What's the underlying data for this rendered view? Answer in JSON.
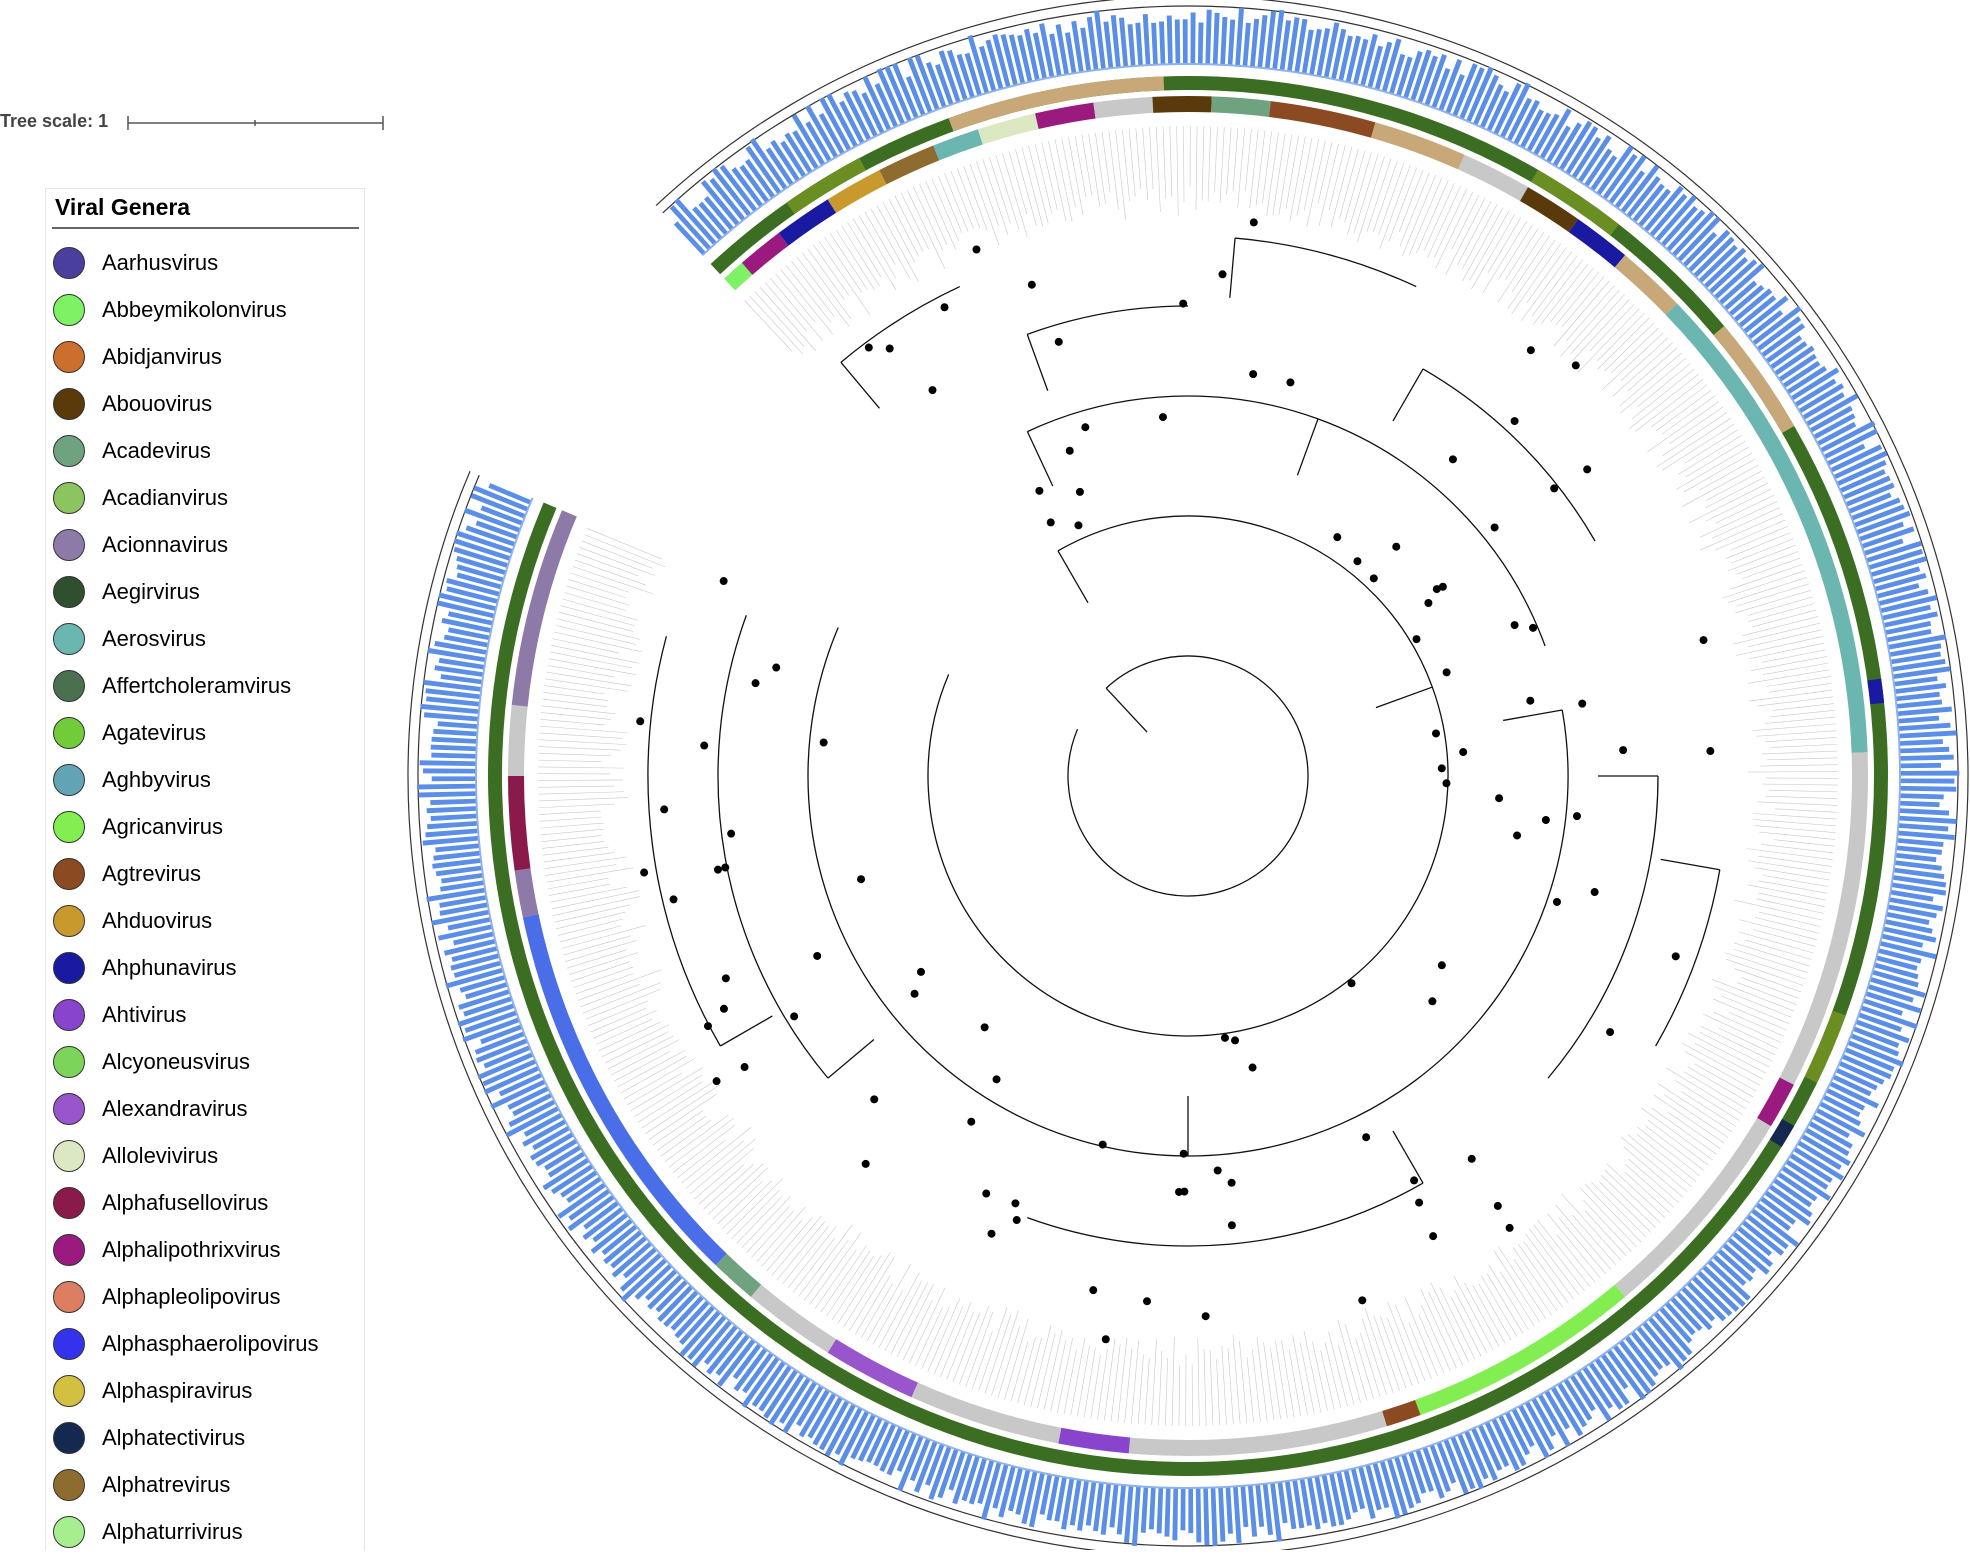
{
  "tree_scale": {
    "label": "Tree scale: 1"
  },
  "legend": {
    "title": "Viral Genera",
    "items": [
      {
        "label": "Aarhusvirus",
        "color": "#4a3f9e"
      },
      {
        "label": "Abbeymikolonvirus",
        "color": "#7cf264"
      },
      {
        "label": "Abidjanvirus",
        "color": "#cc6e2c"
      },
      {
        "label": "Abouovirus",
        "color": "#5a3a0a"
      },
      {
        "label": "Acadevirus",
        "color": "#6fa27f"
      },
      {
        "label": "Acadianvirus",
        "color": "#8cc460"
      },
      {
        "label": "Acionnavirus",
        "color": "#8e7aa8"
      },
      {
        "label": "Aegirvirus",
        "color": "#2f4f2f"
      },
      {
        "label": "Aerosvirus",
        "color": "#6bb6b0"
      },
      {
        "label": "Affertcholeramvirus",
        "color": "#4a7050"
      },
      {
        "label": "Agatevirus",
        "color": "#72cc3a"
      },
      {
        "label": "Aghbyvirus",
        "color": "#62a4b6"
      },
      {
        "label": "Agricanvirus",
        "color": "#82ee52"
      },
      {
        "label": "Agtrevirus",
        "color": "#8b4a22"
      },
      {
        "label": "Ahduovirus",
        "color": "#c89a2e"
      },
      {
        "label": "Ahphunavirus",
        "color": "#1a1aa0"
      },
      {
        "label": "Ahtivirus",
        "color": "#8844cc"
      },
      {
        "label": "Alcyoneusvirus",
        "color": "#7dd45a"
      },
      {
        "label": "Alexandravirus",
        "color": "#9955cc"
      },
      {
        "label": "Allolevivirus",
        "color": "#dce8c2"
      },
      {
        "label": "Alphafusellovirus",
        "color": "#8a1a4a"
      },
      {
        "label": "Alphalipothrixvirus",
        "color": "#9a1a80"
      },
      {
        "label": "Alphapleolipovirus",
        "color": "#dd7e62"
      },
      {
        "label": "Alphasphaerolipovirus",
        "color": "#3333ee"
      },
      {
        "label": "Alphaspiravirus",
        "color": "#d4c040"
      },
      {
        "label": "Alphatectivirus",
        "color": "#142850"
      },
      {
        "label": "Alphatrevirus",
        "color": "#8e6c30"
      },
      {
        "label": "Alphaturrivirus",
        "color": "#a6ee8e"
      }
    ]
  }
}
